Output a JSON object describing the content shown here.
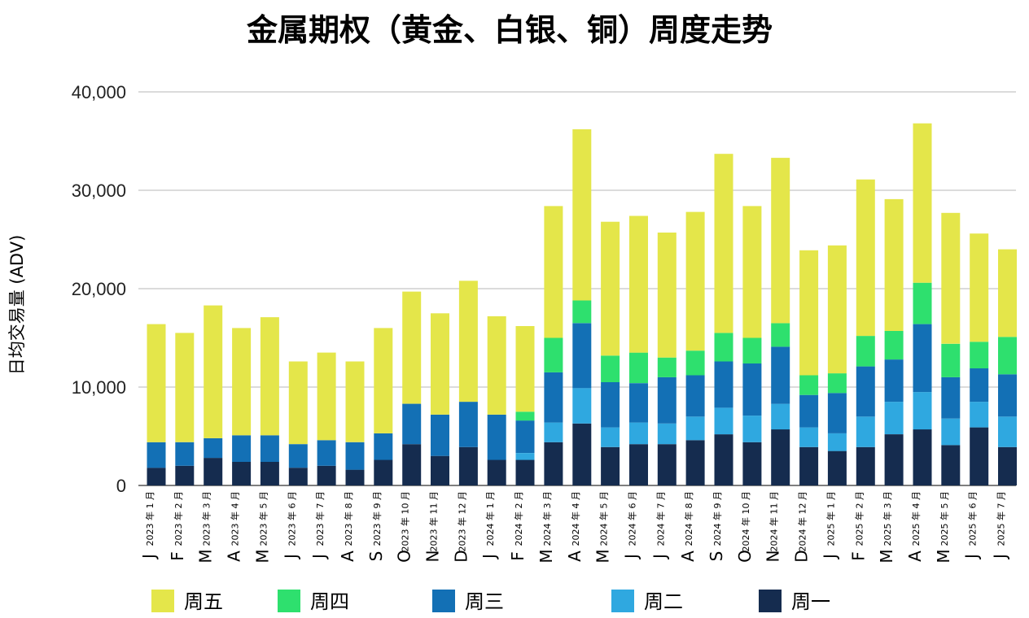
{
  "chart_data": {
    "type": "bar",
    "stacked": true,
    "title": "金属期权（黄金、白银、铜）周度走势",
    "xlabel": "",
    "ylabel": "日均交易量 (ADV)",
    "ylim": [
      0,
      40000
    ],
    "yticks": [
      "0",
      "10,000",
      "20,000",
      "30,000",
      "40,000"
    ],
    "yticks_values": [
      0,
      10000,
      20000,
      30000,
      40000
    ],
    "grid": true,
    "legend_position": "bottom",
    "categories": [
      "2023 年 1 月",
      "2023 年 2 月",
      "2023 年 3 月",
      "2023 年 4 月",
      "2023 年 5 月",
      "2023 年 6 月",
      "2023 年 7 月",
      "2023 年 8 月",
      "2023 年 9 月",
      "2023 年 10 月",
      "2023 年 11 月",
      "2023 年 12 月",
      "2024 年 1 月",
      "2024 年 2 月",
      "2024 年 3 月",
      "2024 年 4 月",
      "2024 年 5 月",
      "2024 年 6 月",
      "2024 年 7 月",
      "2024 年 8 月",
      "2024 年 9 月",
      "2024 年 10 月",
      "2024 年 11 月",
      "2024 年 12 月",
      "2025 年 1 月",
      "2025 年 2 月",
      "2025 年 3 月",
      "2025 年 4 月",
      "2025 年 5 月",
      "2025 年 6 月",
      "2025 年 7 月"
    ],
    "month_letters": [
      "J",
      "F",
      "M",
      "A",
      "M",
      "J",
      "J",
      "A",
      "S",
      "O",
      "N",
      "D",
      "J",
      "F",
      "M",
      "A",
      "M",
      "J",
      "J",
      "A",
      "S",
      "O",
      "N",
      "D",
      "J",
      "F",
      "M",
      "A",
      "M",
      "J",
      "J"
    ],
    "series": [
      {
        "name": "周一",
        "color": "#152c4f",
        "values": [
          1800,
          2000,
          2800,
          2400,
          2400,
          1800,
          2000,
          1600,
          2600,
          4200,
          3000,
          3900,
          2600,
          2600,
          4400,
          6300,
          3900,
          4200,
          4200,
          4600,
          5200,
          4400,
          5700,
          3900,
          3500,
          3900,
          5200,
          5700,
          4100,
          5900,
          3900
        ]
      },
      {
        "name": "周二",
        "color": "#2fa8e0",
        "values": [
          0,
          0,
          0,
          0,
          0,
          0,
          0,
          0,
          0,
          0,
          0,
          0,
          0,
          700,
          2000,
          3600,
          2000,
          2200,
          2100,
          2400,
          2700,
          2700,
          2600,
          2000,
          1800,
          3100,
          3300,
          3800,
          2700,
          2600,
          3100
        ]
      },
      {
        "name": "周三",
        "color": "#1370b5",
        "values": [
          2600,
          2400,
          2000,
          2700,
          2700,
          2400,
          2600,
          2800,
          2700,
          4100,
          4200,
          4600,
          4600,
          3300,
          5100,
          6600,
          4600,
          4000,
          4700,
          4200,
          4700,
          5300,
          5800,
          3300,
          4100,
          5100,
          4300,
          6900,
          4200,
          3400,
          4300
        ]
      },
      {
        "name": "周四",
        "color": "#2ee06e",
        "values": [
          0,
          0,
          0,
          0,
          0,
          0,
          0,
          0,
          0,
          0,
          0,
          0,
          0,
          900,
          3500,
          2300,
          2700,
          3100,
          2000,
          2500,
          2900,
          2600,
          2400,
          2000,
          2000,
          3100,
          2900,
          4200,
          3400,
          2700,
          3800
        ]
      },
      {
        "name": "周五",
        "color": "#e4e64a",
        "values": [
          12000,
          11100,
          13500,
          10900,
          12000,
          8400,
          8900,
          8200,
          10700,
          11400,
          10300,
          12300,
          10000,
          8700,
          13400,
          17400,
          13600,
          13900,
          12700,
          14100,
          18200,
          13400,
          16800,
          12700,
          13000,
          15900,
          13400,
          16200,
          13300,
          11000,
          8900
        ]
      }
    ],
    "legend_order": [
      "周五",
      "周四",
      "周三",
      "周二",
      "周一"
    ]
  }
}
